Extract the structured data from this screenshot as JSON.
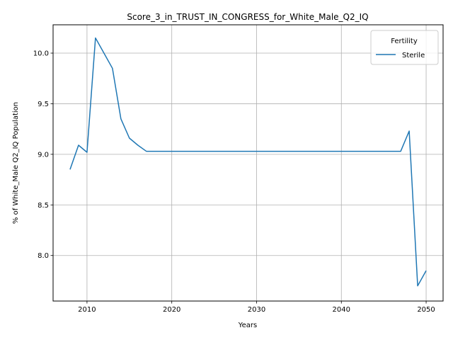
{
  "chart_data": {
    "type": "line",
    "title": "Score_3_in_TRUST_IN_CONGRESS_for_White_Male_Q2_IQ",
    "xlabel": "Years",
    "ylabel": "% of White_Male Q2_IQ Population",
    "xlim": [
      2006,
      2052
    ],
    "ylim": [
      7.55,
      10.28
    ],
    "xticks": [
      2010,
      2020,
      2030,
      2040,
      2050
    ],
    "yticks": [
      8.0,
      8.5,
      9.0,
      9.5,
      10.0
    ],
    "xtick_labels": [
      "2010",
      "2020",
      "2030",
      "2040",
      "2050"
    ],
    "ytick_labels": [
      "8.0",
      "8.5",
      "9.0",
      "9.5",
      "10.0"
    ],
    "grid": true,
    "legend": {
      "title": "Fertility",
      "placement": "top-right"
    },
    "series": [
      {
        "name": "Sterile",
        "color": "#1f77b4",
        "x": [
          2008,
          2009,
          2010,
          2011,
          2012,
          2013,
          2014,
          2015,
          2016,
          2017,
          2018,
          2019,
          2020,
          2021,
          2022,
          2023,
          2024,
          2025,
          2026,
          2027,
          2028,
          2029,
          2030,
          2031,
          2032,
          2033,
          2034,
          2035,
          2036,
          2037,
          2038,
          2039,
          2040,
          2041,
          2042,
          2043,
          2044,
          2045,
          2046,
          2047,
          2048,
          2049,
          2050
        ],
        "values": [
          8.85,
          9.09,
          9.02,
          10.15,
          10.0,
          9.85,
          9.35,
          9.16,
          9.09,
          9.03,
          9.03,
          9.03,
          9.03,
          9.03,
          9.03,
          9.03,
          9.03,
          9.03,
          9.03,
          9.03,
          9.03,
          9.03,
          9.03,
          9.03,
          9.03,
          9.03,
          9.03,
          9.03,
          9.03,
          9.03,
          9.03,
          9.03,
          9.03,
          9.03,
          9.03,
          9.03,
          9.03,
          9.03,
          9.03,
          9.03,
          9.23,
          7.7,
          7.85
        ]
      }
    ]
  }
}
